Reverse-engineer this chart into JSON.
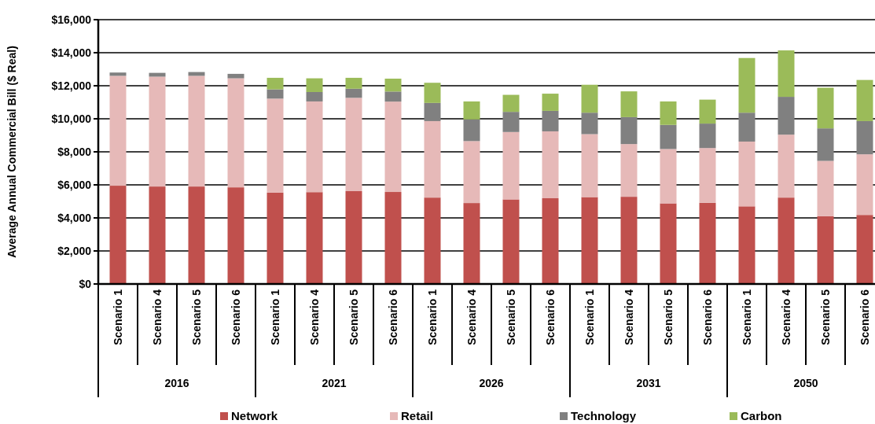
{
  "chart_data": {
    "type": "bar",
    "stacked": true,
    "ylabel": "Average Annual Commercial Bill ($ Real)",
    "categories": [
      "Scenario 1",
      "Scenario 4",
      "Scenario 5",
      "Scenario 6",
      "Scenario 1",
      "Scenario 4",
      "Scenario 5",
      "Scenario 6",
      "Scenario 1",
      "Scenario 4",
      "Scenario 5",
      "Scenario 6",
      "Scenario 1",
      "Scenario 4",
      "Scenario 5",
      "Scenario 6",
      "Scenario 1",
      "Scenario 4",
      "Scenario 5",
      "Scenario 6"
    ],
    "annotations": [
      "2016",
      "2021",
      "2026",
      "2031",
      "2050"
    ],
    "series": [
      {
        "name": "Network",
        "color": "#c0504d",
        "values": [
          5950,
          5900,
          5900,
          5850,
          5530,
          5560,
          5620,
          5570,
          5230,
          4900,
          5120,
          5190,
          5260,
          5280,
          4880,
          4910,
          4700,
          5230,
          4100,
          4180
        ]
      },
      {
        "name": "Retail",
        "color": "#e6b9b8",
        "values": [
          6650,
          6650,
          6700,
          6600,
          5690,
          5490,
          5650,
          5470,
          4630,
          3750,
          4080,
          4050,
          3810,
          3190,
          3290,
          3320,
          3920,
          3810,
          3350,
          3670
        ]
      },
      {
        "name": "Technology",
        "color": "#808080",
        "values": [
          200,
          230,
          230,
          270,
          560,
          570,
          550,
          610,
          1100,
          1310,
          1220,
          1240,
          1300,
          1630,
          1460,
          1480,
          1750,
          2290,
          1970,
          2010
        ]
      },
      {
        "name": "Carbon",
        "color": "#9bbb59",
        "values": [
          null,
          null,
          null,
          null,
          700,
          830,
          660,
          780,
          1220,
          1090,
          1030,
          1040,
          1690,
          1560,
          1420,
          1450,
          3310,
          2810,
          2460,
          2490
        ]
      }
    ],
    "ylim": [
      0,
      16000
    ],
    "yticks": [
      {
        "value": 0,
        "label": "$0"
      },
      {
        "value": 2000,
        "label": "$2,000"
      },
      {
        "value": 4000,
        "label": "$4,000"
      },
      {
        "value": 6000,
        "label": "$6,000"
      },
      {
        "value": 8000,
        "label": "$8,000"
      },
      {
        "value": 10000,
        "label": "$10,000"
      },
      {
        "value": 12000,
        "label": "$12,000"
      },
      {
        "value": 14000,
        "label": "$14,000"
      },
      {
        "value": 16000,
        "label": "$16,000"
      }
    ],
    "grid": "y",
    "legend": "bottom"
  }
}
